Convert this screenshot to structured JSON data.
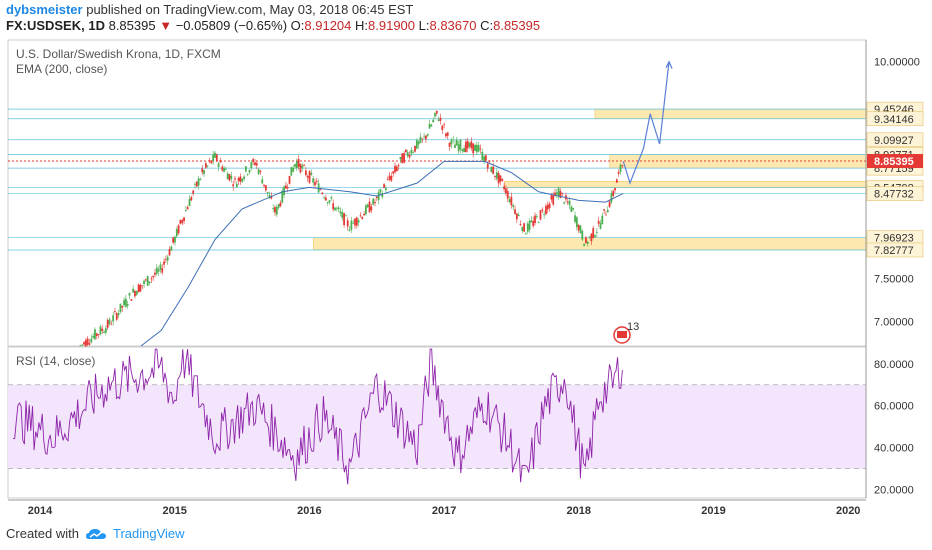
{
  "header": {
    "user": "dybsmeister",
    "published": "published on TradingView.com, May 03, 2018 06:45 EST",
    "symbol": "FX:USDSEK, 1D",
    "price": "8.85395",
    "change": "−0.05809 (−0.65%)",
    "o_label": "O:",
    "o_value": "8.91204",
    "h_label": "H:",
    "h_value": "8.91900",
    "l_label": "L:",
    "l_value": "8.83670",
    "c_label": "C:",
    "c_value": "8.85395"
  },
  "main_legend": {
    "title": "U.S. Dollar/Swedish Krona, 1D, FXCM",
    "indicator": "EMA (200, close)"
  },
  "rsi_legend": {
    "title": "RSI (14, close)"
  },
  "event_badge": "13",
  "footer": {
    "created_with": "Created with",
    "brand": "TradingView"
  },
  "colors": {
    "candle_up": "#4caf50",
    "candle_down": "#e53935",
    "ema": "#3d6fb4",
    "rsi": "#8e24aa",
    "zone": "#fde9b0",
    "band": "#f3e5fb",
    "current_price": "#e53935",
    "level_line": "#5bc0de",
    "projection": "#5c7fd6"
  },
  "chart_data": [
    {
      "type": "candlestick",
      "title": "U.S. Dollar/Swedish Krona, 1D, FXCM",
      "indicator": "EMA (200, close)",
      "x_ticks": [
        "2014",
        "2015",
        "2016",
        "2017",
        "2018",
        "2019",
        "2020"
      ],
      "y_ticks": [
        "10.00000",
        "7.50000",
        "7.00000"
      ],
      "ylim": [
        6.72,
        10.25
      ],
      "current_price": 8.85395,
      "levels": [
        {
          "label": "9.45246",
          "value": 9.45246
        },
        {
          "label": "9.34146",
          "value": 9.34146
        },
        {
          "label": "9.09927",
          "value": 9.09927
        },
        {
          "label": "8.92771",
          "value": 8.92771
        },
        {
          "label": "8.77159",
          "value": 8.77159
        },
        {
          "label": "8.54798",
          "value": 8.54798
        },
        {
          "label": "8.47732",
          "value": 8.47732
        },
        {
          "label": "7.96923",
          "value": 7.96923
        },
        {
          "label": "7.82777",
          "value": 7.82777
        }
      ],
      "zones": [
        {
          "from": 9.34146,
          "to": 9.45246,
          "start": "2018.12"
        },
        {
          "from": 8.77159,
          "to": 8.92771,
          "start": "2018.23"
        },
        {
          "from": 8.54798,
          "to": 8.62,
          "start": "2017.45"
        },
        {
          "from": 7.82777,
          "to": 7.96923,
          "start": "2016.03"
        }
      ],
      "series": [
        {
          "name": "price",
          "x": [
            2014.3,
            2014.5,
            2014.7,
            2014.9,
            2015.0,
            2015.1,
            2015.2,
            2015.3,
            2015.45,
            2015.6,
            2015.75,
            2015.9,
            2016.1,
            2016.3,
            2016.5,
            2016.7,
            2016.85,
            2016.95,
            2017.05,
            2017.25,
            2017.45,
            2017.6,
            2017.7,
            2017.85,
            2017.95,
            2018.05,
            2018.15,
            2018.25,
            2018.33
          ],
          "y": [
            6.72,
            6.95,
            7.35,
            7.6,
            7.95,
            8.35,
            8.7,
            8.9,
            8.6,
            8.85,
            8.25,
            8.85,
            8.5,
            8.1,
            8.4,
            8.9,
            9.1,
            9.4,
            9.05,
            9.0,
            8.55,
            8.05,
            8.2,
            8.5,
            8.3,
            7.9,
            8.1,
            8.45,
            8.85
          ]
        },
        {
          "name": "EMA (200, close)",
          "x": [
            2014.75,
            2014.9,
            2015.1,
            2015.3,
            2015.5,
            2015.8,
            2016.0,
            2016.3,
            2016.5,
            2016.8,
            2017.0,
            2017.3,
            2017.5,
            2017.7,
            2018.0,
            2018.2,
            2018.33
          ],
          "y": [
            6.72,
            6.9,
            7.4,
            7.95,
            8.3,
            8.5,
            8.55,
            8.5,
            8.45,
            8.6,
            8.85,
            8.85,
            8.72,
            8.5,
            8.4,
            8.38,
            8.48
          ]
        }
      ]
    },
    {
      "type": "line",
      "title": "RSI (14, close)",
      "y_ticks": [
        "80.0000",
        "60.0000",
        "40.0000",
        "20.0000"
      ],
      "ylim": [
        16,
        88
      ],
      "bands": [
        30,
        70
      ],
      "series": [
        {
          "name": "RSI (14, close)",
          "x": [
            2013.8,
            2014.1,
            2014.5,
            2014.9,
            2015.0,
            2015.05,
            2015.3,
            2015.6,
            2015.9,
            2016.1,
            2016.3,
            2016.5,
            2016.8,
            2016.9,
            2017.1,
            2017.3,
            2017.5,
            2017.6,
            2017.75,
            2017.9,
            2017.95,
            2018.05,
            2018.15,
            2018.25,
            2018.33
          ],
          "y": [
            55,
            45,
            70,
            78,
            62,
            85,
            45,
            60,
            35,
            55,
            30,
            70,
            40,
            80,
            35,
            62,
            40,
            22,
            60,
            75,
            55,
            25,
            65,
            70,
            82
          ]
        }
      ]
    }
  ]
}
